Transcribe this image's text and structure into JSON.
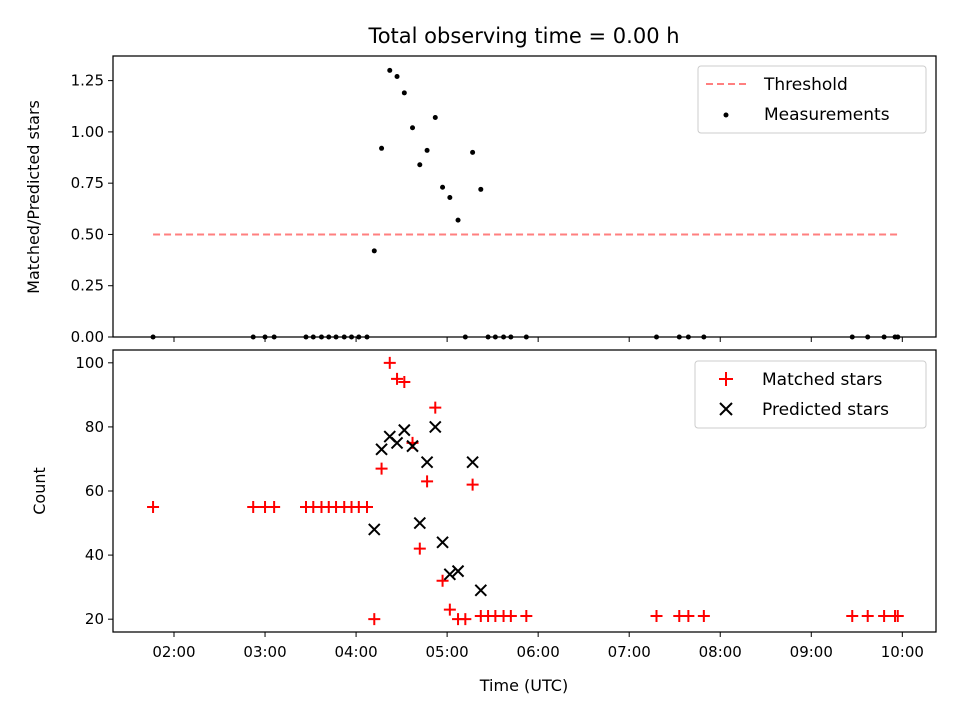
{
  "title": "Total observing time = 0.00 h",
  "chart_data": [
    {
      "type": "scatter",
      "ylabel": "Matched/Predicted stars",
      "ylim": [
        0,
        1.37
      ],
      "yticks": [
        "0.00",
        "0.25",
        "0.50",
        "0.75",
        "1.00",
        "1.25"
      ],
      "xlim_hours": [
        1.33,
        10.37
      ],
      "legend_position": "top-right",
      "threshold": {
        "name": "Threshold",
        "value": 0.5,
        "x_start": 1.77,
        "x_end": 9.95,
        "color": "#ff7f7f"
      },
      "series": [
        {
          "name": "Measurements",
          "color": "#000000",
          "points": [
            [
              1.77,
              0.0
            ],
            [
              2.87,
              0.0
            ],
            [
              3.0,
              0.0
            ],
            [
              3.1,
              0.0
            ],
            [
              3.45,
              0.0
            ],
            [
              3.53,
              0.0
            ],
            [
              3.62,
              0.0
            ],
            [
              3.7,
              0.0
            ],
            [
              3.78,
              0.0
            ],
            [
              3.87,
              0.0
            ],
            [
              3.95,
              0.0
            ],
            [
              4.03,
              0.0
            ],
            [
              4.12,
              0.0
            ],
            [
              4.2,
              0.42
            ],
            [
              4.28,
              0.92
            ],
            [
              4.37,
              1.3
            ],
            [
              4.45,
              1.27
            ],
            [
              4.53,
              1.19
            ],
            [
              4.62,
              1.02
            ],
            [
              4.7,
              0.84
            ],
            [
              4.78,
              0.91
            ],
            [
              4.87,
              1.07
            ],
            [
              4.95,
              0.73
            ],
            [
              5.03,
              0.68
            ],
            [
              5.12,
              0.57
            ],
            [
              5.2,
              0.0
            ],
            [
              5.28,
              0.9
            ],
            [
              5.37,
              0.72
            ],
            [
              5.45,
              0.0
            ],
            [
              5.53,
              0.0
            ],
            [
              5.62,
              0.0
            ],
            [
              5.7,
              0.0
            ],
            [
              5.87,
              0.0
            ],
            [
              7.3,
              0.0
            ],
            [
              7.55,
              0.0
            ],
            [
              7.65,
              0.0
            ],
            [
              7.82,
              0.0
            ],
            [
              9.45,
              0.0
            ],
            [
              9.62,
              0.0
            ],
            [
              9.8,
              0.0
            ],
            [
              9.92,
              0.0
            ],
            [
              9.95,
              0.0
            ]
          ]
        }
      ]
    },
    {
      "type": "scatter",
      "xlabel": "Time (UTC)",
      "ylabel": "Count",
      "ylim": [
        16,
        104
      ],
      "yticks": [
        "20",
        "40",
        "60",
        "80",
        "100"
      ],
      "xticks": [
        "02:00",
        "03:00",
        "04:00",
        "05:00",
        "06:00",
        "07:00",
        "08:00",
        "09:00",
        "10:00"
      ],
      "xlim_hours": [
        1.33,
        10.37
      ],
      "legend_position": "top-right",
      "series": [
        {
          "name": "Matched stars",
          "marker": "+",
          "color": "#ff0000",
          "points": [
            [
              1.77,
              55
            ],
            [
              2.87,
              55
            ],
            [
              3.0,
              55
            ],
            [
              3.1,
              55
            ],
            [
              3.45,
              55
            ],
            [
              3.53,
              55
            ],
            [
              3.62,
              55
            ],
            [
              3.7,
              55
            ],
            [
              3.78,
              55
            ],
            [
              3.87,
              55
            ],
            [
              3.95,
              55
            ],
            [
              4.03,
              55
            ],
            [
              4.12,
              55
            ],
            [
              4.2,
              20
            ],
            [
              4.28,
              67
            ],
            [
              4.37,
              100
            ],
            [
              4.45,
              95
            ],
            [
              4.53,
              94
            ],
            [
              4.62,
              75
            ],
            [
              4.7,
              42
            ],
            [
              4.78,
              63
            ],
            [
              4.87,
              86
            ],
            [
              4.95,
              32
            ],
            [
              5.03,
              23
            ],
            [
              5.12,
              20
            ],
            [
              5.2,
              20
            ],
            [
              5.28,
              62
            ],
            [
              5.37,
              21
            ],
            [
              5.45,
              21
            ],
            [
              5.53,
              21
            ],
            [
              5.62,
              21
            ],
            [
              5.7,
              21
            ],
            [
              5.87,
              21
            ],
            [
              7.3,
              21
            ],
            [
              7.55,
              21
            ],
            [
              7.65,
              21
            ],
            [
              7.82,
              21
            ],
            [
              9.45,
              21
            ],
            [
              9.62,
              21
            ],
            [
              9.8,
              21
            ],
            [
              9.92,
              21
            ],
            [
              9.95,
              21
            ]
          ]
        },
        {
          "name": "Predicted stars",
          "marker": "x",
          "color": "#000000",
          "points": [
            [
              4.2,
              48
            ],
            [
              4.28,
              73
            ],
            [
              4.37,
              77
            ],
            [
              4.45,
              75
            ],
            [
              4.53,
              79
            ],
            [
              4.62,
              74
            ],
            [
              4.7,
              50
            ],
            [
              4.78,
              69
            ],
            [
              4.87,
              80
            ],
            [
              4.95,
              44
            ],
            [
              5.03,
              34
            ],
            [
              5.12,
              35
            ],
            [
              5.28,
              69
            ],
            [
              5.37,
              29
            ]
          ]
        }
      ]
    }
  ]
}
